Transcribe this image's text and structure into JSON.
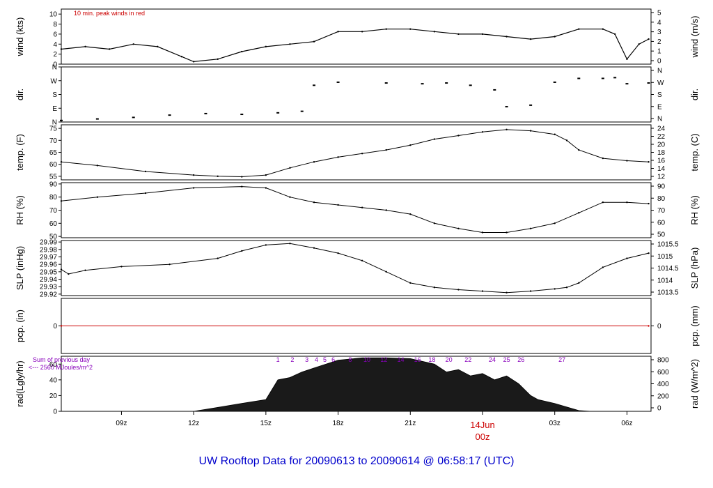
{
  "title": "UW Rooftop Data for 20090613  to  20090614 @ 06:58:17  (UTC)",
  "colors": {
    "title": "#0000cc",
    "red": "#cc0000",
    "purple": "#8800bb",
    "rad_fill": "#1a1a1a"
  },
  "x_axis": {
    "ticks": [
      {
        "label": "09z",
        "hour": 9
      },
      {
        "label": "12z",
        "hour": 12
      },
      {
        "label": "15z",
        "hour": 15
      },
      {
        "label": "18z",
        "hour": 18
      },
      {
        "label": "21z",
        "hour": 21
      },
      {
        "label": "06z",
        "hour": 30
      },
      {
        "label": "03z",
        "hour": 27
      }
    ],
    "day_marker": {
      "hour": 24,
      "date": "14Jun",
      "time": "00z"
    }
  },
  "chart_data": [
    {
      "type": "line",
      "id": "wind",
      "ylabel_left": "wind (kts)",
      "ylabel_right": "wind (m/s)",
      "annotation": "10 min. peak winds in red",
      "yticks_left": [
        0,
        2,
        4,
        6,
        8,
        10
      ],
      "yticks_right": [
        0,
        1,
        2,
        3,
        4,
        5
      ],
      "ylim": [
        0,
        11
      ],
      "series": [
        {
          "hours": [
            6.5,
            7.5,
            8.5,
            9.5,
            10.5,
            11.5,
            12,
            13,
            14,
            15,
            16,
            17,
            18,
            19,
            20,
            21,
            22,
            23,
            24,
            25,
            26,
            27,
            28,
            29,
            29.5,
            30,
            30.5,
            30.9
          ],
          "values": [
            3,
            3.5,
            3,
            4,
            3.5,
            1.5,
            0.5,
            1,
            2.5,
            3.5,
            4,
            4.5,
            6.5,
            6.5,
            7,
            7,
            6.5,
            6,
            6,
            5.5,
            5,
            5.5,
            7,
            7,
            6,
            1,
            4,
            5
          ]
        }
      ]
    },
    {
      "type": "scatter",
      "id": "dir",
      "ylabel_left": "dir.",
      "ylabel_right": "dir.",
      "yticks_left": [
        "N",
        "E",
        "S",
        "W",
        "N"
      ],
      "yticks_right": [
        "N",
        "E",
        "S",
        "W",
        "N"
      ],
      "ylim": [
        0,
        360
      ],
      "series": [
        {
          "hours": [
            6.5,
            8,
            9.5,
            11,
            12.5,
            14,
            15.5,
            16.5,
            17,
            18,
            20,
            21.5,
            22.5,
            23.5,
            24.5,
            25,
            26,
            27,
            28,
            29,
            29.5,
            30,
            30.9
          ],
          "values": [
            10,
            20,
            30,
            45,
            55,
            50,
            60,
            70,
            240,
            260,
            255,
            250,
            255,
            240,
            210,
            100,
            110,
            260,
            285,
            285,
            290,
            250,
            255
          ]
        }
      ]
    },
    {
      "type": "line",
      "id": "temp",
      "ylabel_left": "temp. (F)",
      "ylabel_right": "temp. (C)",
      "yticks_left": [
        55,
        60,
        65,
        70,
        75
      ],
      "yticks_right": [
        12,
        14,
        16,
        18,
        20,
        22,
        24
      ],
      "ylim": [
        53.5,
        76.5
      ],
      "series": [
        {
          "hours": [
            6.5,
            8,
            10,
            12,
            13,
            14,
            15,
            16,
            17,
            18,
            19,
            20,
            21,
            22,
            23,
            24,
            25,
            26,
            27,
            27.5,
            28,
            29,
            30,
            30.9
          ],
          "values": [
            61,
            59.5,
            57,
            55.5,
            55,
            54.8,
            55.5,
            58.5,
            61,
            63,
            64.5,
            66,
            68,
            70.5,
            72,
            73.5,
            74.5,
            74,
            72.5,
            70,
            66,
            62.5,
            61.5,
            61
          ]
        }
      ]
    },
    {
      "type": "line",
      "id": "rh",
      "ylabel_left": "RH (%)",
      "ylabel_right": "RH (%)",
      "yticks_left": [
        50,
        60,
        70,
        80,
        90
      ],
      "yticks_right": [
        50,
        60,
        70,
        80,
        90
      ],
      "ylim": [
        49,
        91
      ],
      "series": [
        {
          "hours": [
            6.5,
            8,
            10,
            12,
            14,
            15,
            16,
            17,
            18,
            19,
            20,
            21,
            22,
            23,
            24,
            25,
            26,
            27,
            28,
            29,
            30,
            30.9
          ],
          "values": [
            77,
            80,
            83,
            87,
            88,
            87,
            80,
            76,
            74,
            72,
            70,
            67,
            60,
            56,
            53,
            53,
            56,
            60,
            68,
            76,
            76,
            75
          ]
        }
      ]
    },
    {
      "type": "line",
      "id": "slp",
      "ylabel_left": "SLP (inHg)",
      "ylabel_right": "SLP (hPa)",
      "yticks_left": [
        29.92,
        29.93,
        29.94,
        29.95,
        29.96,
        29.97,
        29.98,
        29.99
      ],
      "yticks_right": [
        1013.5,
        1014,
        1014.5,
        1015,
        1015.5
      ],
      "ylim": [
        29.918,
        29.992
      ],
      "series": [
        {
          "hours": [
            6.5,
            6.8,
            7.5,
            9,
            11,
            13,
            14,
            15,
            16,
            17,
            18,
            19,
            20,
            21,
            22,
            23,
            24,
            25,
            26,
            27,
            27.5,
            28,
            29,
            30,
            30.9
          ],
          "values": [
            29.953,
            29.947,
            29.952,
            29.957,
            29.96,
            29.968,
            29.978,
            29.986,
            29.988,
            29.982,
            29.975,
            29.965,
            29.95,
            29.935,
            29.929,
            29.926,
            29.924,
            29.922,
            29.924,
            29.927,
            29.929,
            29.935,
            29.956,
            29.968,
            29.975
          ]
        }
      ]
    },
    {
      "type": "line",
      "id": "pcp",
      "ylabel_left": "pcp. (in)",
      "ylabel_right": "pcp. (mm)",
      "yticks_left": [
        0
      ],
      "yticks_right": [
        0
      ],
      "ylim": [
        -1,
        1
      ],
      "series": [
        {
          "hours": [
            6.5,
            30.9
          ],
          "values": [
            0,
            0
          ]
        }
      ]
    },
    {
      "type": "area",
      "id": "rad",
      "ylabel_left": "rad(Lgly/hr)",
      "ylabel_right": "rad (W/m^2)",
      "annotation_left": "Sum of previous day",
      "annotation_left2": "<--- 2560 MJoules/m^2",
      "yticks_left": [
        0,
        20,
        40,
        60
      ],
      "yticks_right": [
        0,
        200,
        400,
        600,
        800
      ],
      "ylim": [
        0,
        70
      ],
      "hour_markers": [
        "1",
        "2",
        "3",
        "4",
        "5",
        "6",
        "8",
        "10",
        "12",
        "14",
        "16",
        "18",
        "20",
        "22",
        "24",
        "25",
        "26",
        "27"
      ],
      "hour_marker_hours": [
        15.5,
        16.1,
        16.7,
        17.1,
        17.45,
        17.8,
        18.5,
        19.2,
        19.9,
        20.6,
        21.3,
        21.9,
        22.6,
        23.4,
        24.4,
        25.0,
        25.6,
        27.3
      ],
      "series": [
        {
          "hours": [
            12,
            13,
            14,
            15,
            15.5,
            16,
            16.5,
            17,
            17.5,
            18,
            19,
            20,
            21,
            22,
            22.5,
            23,
            23.5,
            24,
            24.5,
            25,
            25.5,
            26,
            26.3,
            27,
            28,
            28.5
          ],
          "values": [
            0,
            5,
            10,
            15,
            40,
            43,
            50,
            55,
            60,
            65,
            68,
            68,
            67,
            60,
            50,
            53,
            45,
            48,
            40,
            45,
            35,
            20,
            15,
            10,
            1,
            0
          ]
        }
      ]
    }
  ]
}
